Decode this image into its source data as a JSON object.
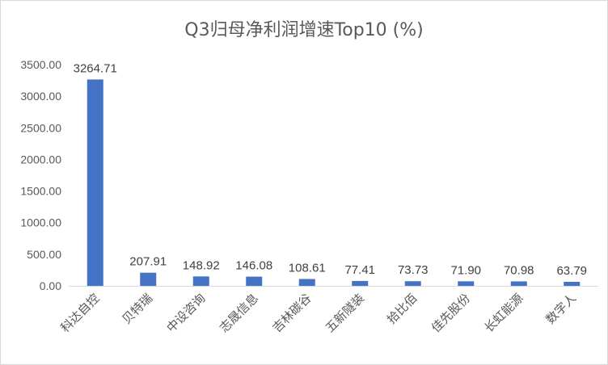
{
  "chart_data": {
    "type": "bar",
    "title": "Q3归母净利润增速Top10 (%)",
    "xlabel": "",
    "ylabel": "",
    "categories": [
      "科达自控",
      "贝特瑞",
      "中设咨询",
      "志晟信息",
      "吉林碳谷",
      "五新隧装",
      "拾比佰",
      "佳先股份",
      "长虹能源",
      "数字人"
    ],
    "values": [
      3264.71,
      207.91,
      148.92,
      146.08,
      108.61,
      77.41,
      73.73,
      71.9,
      70.98,
      63.79
    ],
    "data_labels": [
      "3264.71",
      "207.91",
      "148.92",
      "146.08",
      "108.61",
      "77.41",
      "73.73",
      "71.90",
      "70.98",
      "63.79"
    ],
    "ylim": [
      0,
      3500
    ],
    "yticks": [
      "0.00",
      "500.00",
      "1000.00",
      "1500.00",
      "2000.00",
      "2500.00",
      "3000.00",
      "3500.00"
    ],
    "grid": false,
    "legend": "none",
    "colors": {
      "bar": "#4472c4",
      "axis": "#d9d9d9",
      "text": "#595959"
    }
  }
}
